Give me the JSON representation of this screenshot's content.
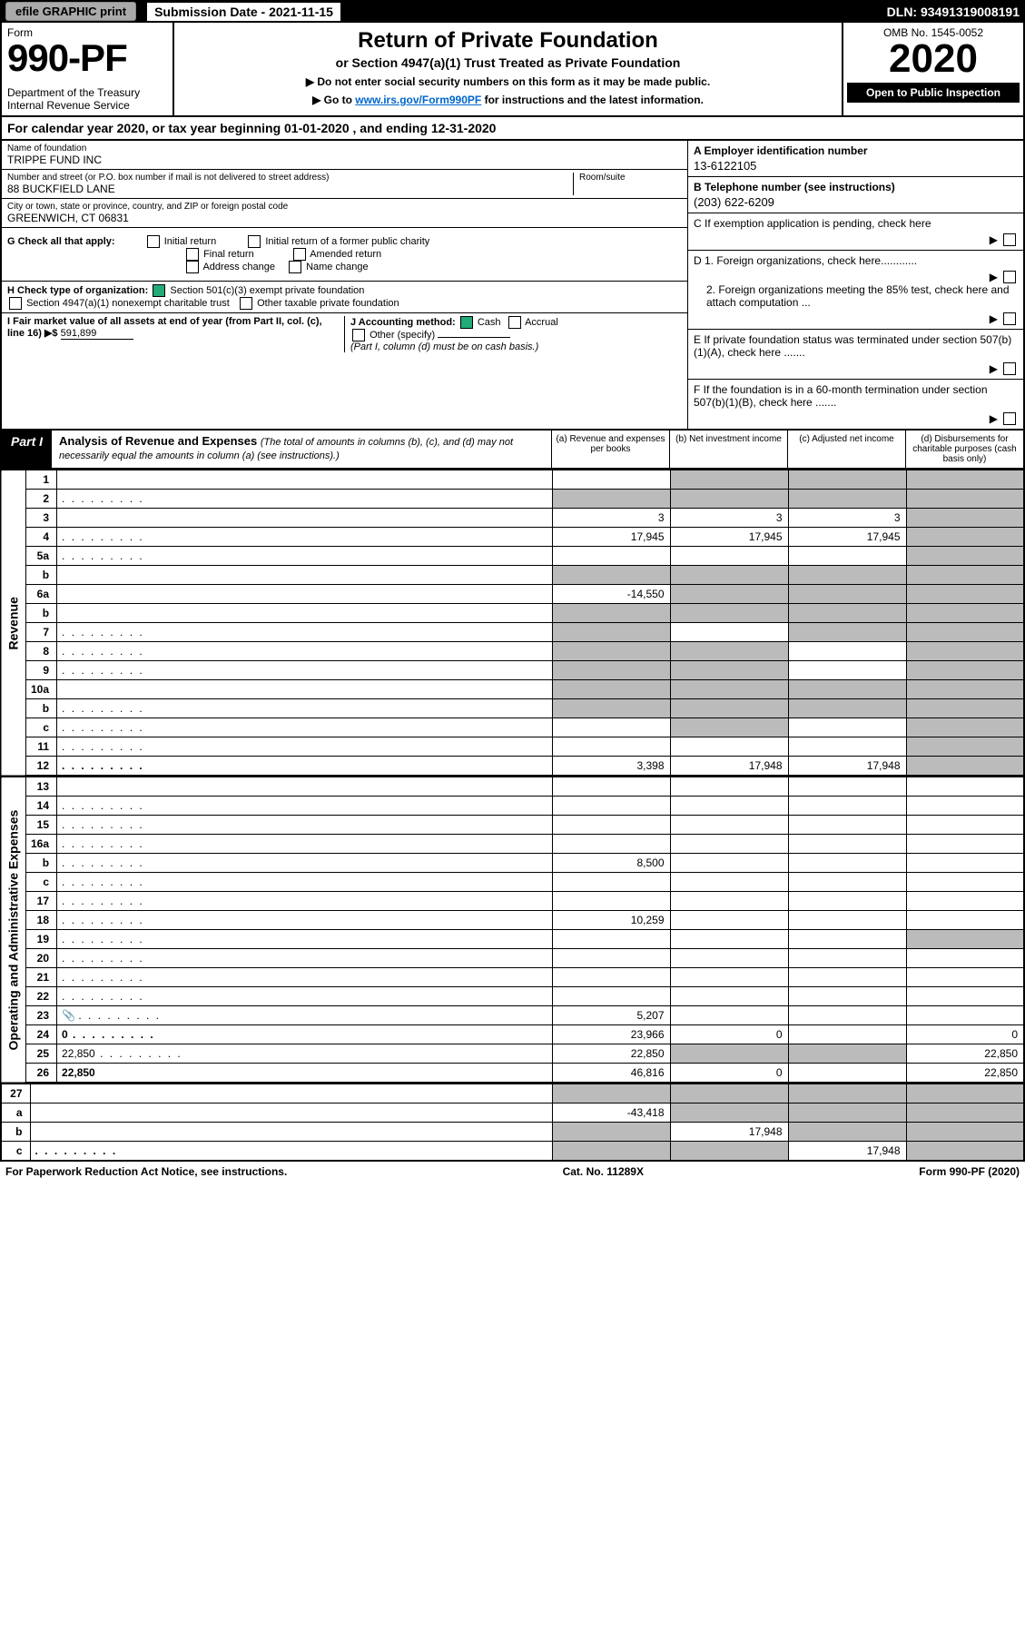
{
  "top": {
    "efile": "efile GRAPHIC print",
    "sub_label": "Submission Date - 2021-11-15",
    "dln": "DLN: 93491319008191"
  },
  "head": {
    "form_word": "Form",
    "form_no": "990-PF",
    "dept": "Department of the Treasury",
    "irs": "Internal Revenue Service",
    "title": "Return of Private Foundation",
    "subtitle": "or Section 4947(a)(1) Trust Treated as Private Foundation",
    "note1": "▶ Do not enter social security numbers on this form as it may be made public.",
    "note2_pre": "▶ Go to ",
    "note2_link": "www.irs.gov/Form990PF",
    "note2_post": " for instructions and the latest information.",
    "omb": "OMB No. 1545-0052",
    "year": "2020",
    "open": "Open to Public Inspection"
  },
  "cal": "For calendar year 2020, or tax year beginning 01-01-2020              , and ending 12-31-2020",
  "id": {
    "name_lbl": "Name of foundation",
    "name_val": "TRIPPE FUND INC",
    "addr_lbl": "Number and street (or P.O. box number if mail is not delivered to street address)",
    "addr_val": "88 BUCKFIELD LANE",
    "room_lbl": "Room/suite",
    "city_lbl": "City or town, state or province, country, and ZIP or foreign postal code",
    "city_val": "GREENWICH, CT  06831",
    "ein_lbl": "A Employer identification number",
    "ein_val": "13-6122105",
    "tel_lbl": "B Telephone number (see instructions)",
    "tel_val": "(203) 622-6209",
    "c_lbl": "C If exemption application is pending, check here",
    "d1": "D 1. Foreign organizations, check here............",
    "d2": "2. Foreign organizations meeting the 85% test, check here and attach computation ...",
    "e_lbl": "E  If private foundation status was terminated under section 507(b)(1)(A), check here .......",
    "f_lbl": "F  If the foundation is in a 60-month termination under section 507(b)(1)(B), check here ......."
  },
  "g": {
    "lbl": "G Check all that apply:",
    "opts": [
      "Initial return",
      "Final return",
      "Address change",
      "Initial return of a former public charity",
      "Amended return",
      "Name change"
    ]
  },
  "h": {
    "lbl": "H Check type of organization:",
    "o1": "Section 501(c)(3) exempt private foundation",
    "o2": "Section 4947(a)(1) nonexempt charitable trust",
    "o3": "Other taxable private foundation"
  },
  "i": {
    "lbl": "I Fair market value of all assets at end of year (from Part II, col. (c), line 16) ▶$",
    "val": "591,899"
  },
  "j": {
    "lbl": "J Accounting method:",
    "cash": "Cash",
    "accr": "Accrual",
    "other": "Other (specify)",
    "note": "(Part I, column (d) must be on cash basis.)"
  },
  "part1": {
    "lbl": "Part I",
    "title": "Analysis of Revenue and Expenses",
    "note": "(The total of amounts in columns (b), (c), and (d) may not necessarily equal the amounts in column (a) (see instructions).)",
    "cols": {
      "a": "(a) Revenue and expenses per books",
      "b": "(b) Net investment income",
      "c": "(c) Adjusted net income",
      "d": "(d) Disbursements for charitable purposes (cash basis only)"
    }
  },
  "side": {
    "rev": "Revenue",
    "exp": "Operating and Administrative Expenses"
  },
  "rows": [
    {
      "n": "1",
      "d": "",
      "a": "",
      "b": "",
      "c": "",
      "sb": true,
      "sc": true,
      "sd": true
    },
    {
      "n": "2",
      "d": "",
      "a": "",
      "b": "",
      "c": "",
      "sa": true,
      "sb": true,
      "sc": true,
      "sd": true,
      "dots": true
    },
    {
      "n": "3",
      "d": "",
      "a": "3",
      "b": "3",
      "c": "3",
      "sd": true
    },
    {
      "n": "4",
      "d": "",
      "a": "17,945",
      "b": "17,945",
      "c": "17,945",
      "sd": true,
      "dots": true
    },
    {
      "n": "5a",
      "d": "",
      "a": "",
      "b": "",
      "c": "",
      "sd": true,
      "dots": true
    },
    {
      "n": "b",
      "d": "",
      "a": "",
      "b": "",
      "c": "",
      "sa": true,
      "sb": true,
      "sc": true,
      "sd": true
    },
    {
      "n": "6a",
      "d": "",
      "a": "-14,550",
      "b": "",
      "c": "",
      "sb": true,
      "sc": true,
      "sd": true
    },
    {
      "n": "b",
      "d": "",
      "a": "",
      "b": "",
      "c": "",
      "sa": true,
      "sb": true,
      "sc": true,
      "sd": true
    },
    {
      "n": "7",
      "d": "",
      "a": "",
      "b": "",
      "c": "",
      "sa": true,
      "sc": true,
      "sd": true,
      "dots": true
    },
    {
      "n": "8",
      "d": "",
      "a": "",
      "b": "",
      "c": "",
      "sa": true,
      "sb": true,
      "sd": true,
      "dots": true
    },
    {
      "n": "9",
      "d": "",
      "a": "",
      "b": "",
      "c": "",
      "sa": true,
      "sb": true,
      "sd": true,
      "dots": true
    },
    {
      "n": "10a",
      "d": "",
      "a": "",
      "b": "",
      "c": "",
      "sa": true,
      "sb": true,
      "sc": true,
      "sd": true
    },
    {
      "n": "b",
      "d": "",
      "a": "",
      "b": "",
      "c": "",
      "sa": true,
      "sb": true,
      "sc": true,
      "sd": true,
      "dots": true
    },
    {
      "n": "c",
      "d": "",
      "a": "",
      "b": "",
      "c": "",
      "sb": true,
      "sd": true,
      "dots": true
    },
    {
      "n": "11",
      "d": "",
      "a": "",
      "b": "",
      "c": "",
      "sd": true,
      "dots": true
    },
    {
      "n": "12",
      "d": "",
      "a": "3,398",
      "b": "17,948",
      "c": "17,948",
      "sd": true,
      "bold": true,
      "dots": true
    }
  ],
  "exp_rows": [
    {
      "n": "13",
      "d": "",
      "a": "",
      "b": "",
      "c": ""
    },
    {
      "n": "14",
      "d": "",
      "a": "",
      "b": "",
      "c": "",
      "dots": true
    },
    {
      "n": "15",
      "d": "",
      "a": "",
      "b": "",
      "c": "",
      "dots": true
    },
    {
      "n": "16a",
      "d": "",
      "a": "",
      "b": "",
      "c": "",
      "dots": true
    },
    {
      "n": "b",
      "d": "",
      "a": "8,500",
      "b": "",
      "c": "",
      "dots": true
    },
    {
      "n": "c",
      "d": "",
      "a": "",
      "b": "",
      "c": "",
      "dots": true
    },
    {
      "n": "17",
      "d": "",
      "a": "",
      "b": "",
      "c": "",
      "dots": true
    },
    {
      "n": "18",
      "d": "",
      "a": "10,259",
      "b": "",
      "c": "",
      "dots": true
    },
    {
      "n": "19",
      "d": "",
      "a": "",
      "b": "",
      "c": "",
      "sd": true,
      "dots": true
    },
    {
      "n": "20",
      "d": "",
      "a": "",
      "b": "",
      "c": "",
      "dots": true
    },
    {
      "n": "21",
      "d": "",
      "a": "",
      "b": "",
      "c": "",
      "dots": true
    },
    {
      "n": "22",
      "d": "",
      "a": "",
      "b": "",
      "c": "",
      "dots": true
    },
    {
      "n": "23",
      "d": "",
      "a": "5,207",
      "b": "",
      "c": "",
      "dots": true,
      "icon": true
    },
    {
      "n": "24",
      "d": "0",
      "a": "23,966",
      "b": "0",
      "c": "",
      "bold": true,
      "dots": true
    },
    {
      "n": "25",
      "d": "22,850",
      "a": "22,850",
      "b": "",
      "c": "",
      "sb": true,
      "sc": true,
      "dots": true
    },
    {
      "n": "26",
      "d": "22,850",
      "a": "46,816",
      "b": "0",
      "c": "",
      "bold": true
    }
  ],
  "net_rows": [
    {
      "n": "27",
      "d": "",
      "a": "",
      "b": "",
      "c": "",
      "sa": true,
      "sb": true,
      "sc": true,
      "sd": true
    },
    {
      "n": "a",
      "d": "",
      "a": "-43,418",
      "b": "",
      "c": "",
      "sb": true,
      "sc": true,
      "sd": true,
      "bold": true
    },
    {
      "n": "b",
      "d": "",
      "a": "",
      "b": "17,948",
      "c": "",
      "sa": true,
      "sc": true,
      "sd": true,
      "bold": true
    },
    {
      "n": "c",
      "d": "",
      "a": "",
      "b": "",
      "c": "17,948",
      "sa": true,
      "sb": true,
      "sd": true,
      "bold": true,
      "dots": true
    }
  ],
  "footer": {
    "left": "For Paperwork Reduction Act Notice, see instructions.",
    "mid": "Cat. No. 11289X",
    "right": "Form 990-PF (2020)"
  },
  "colors": {
    "shade": "#bbbbbb",
    "link": "#0066cc"
  }
}
